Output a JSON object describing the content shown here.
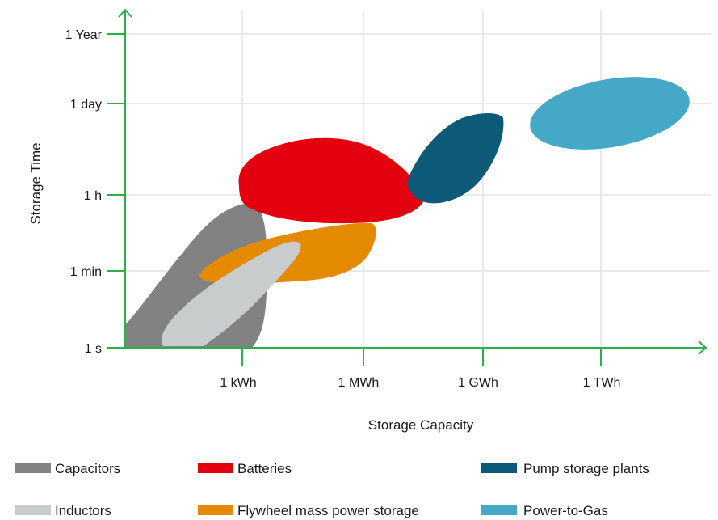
{
  "chart_data": {
    "type": "area",
    "title": "",
    "xlabel": "Storage Capacity",
    "ylabel": "Storage Time",
    "x_ticks": [
      "1 kWh",
      "1 MWh",
      "1 GWh",
      "1 TWh"
    ],
    "y_ticks": [
      "1 s",
      "1 min",
      "1 h",
      "1 day",
      "1 Year"
    ],
    "grid": true,
    "axis_color": "#2bb04a",
    "grid_color": "#e3e3e3",
    "legend_position": "bottom",
    "series": [
      {
        "name": "Capacitors",
        "color": "#828282"
      },
      {
        "name": "Inductors",
        "color": "#c8cccd"
      },
      {
        "name": "Batteries",
        "color": "#e3000f"
      },
      {
        "name": "Flywheel mass power storage",
        "color": "#e38a00"
      },
      {
        "name": "Pump storage plants",
        "color": "#0c5a78"
      },
      {
        "name": "Power-to-Gas",
        "color": "#45a8c6"
      }
    ],
    "legend": [
      {
        "name": "Capacitors",
        "color": "#828282"
      },
      {
        "name": "Batteries",
        "color": "#e3000f"
      },
      {
        "name": "Pump storage plants",
        "color": "#0c5a78"
      },
      {
        "name": "Inductors",
        "color": "#c8cccd"
      },
      {
        "name": "Flywheel mass power storage",
        "color": "#e38a00"
      },
      {
        "name": "Power-to-Gas",
        "color": "#45a8c6"
      }
    ]
  }
}
